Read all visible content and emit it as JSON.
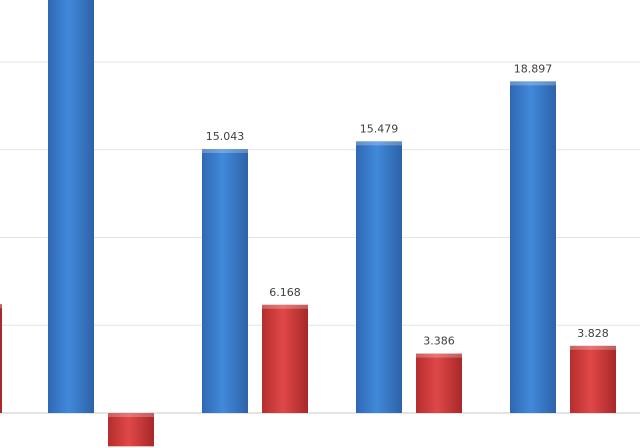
{
  "chart_data": {
    "type": "bar",
    "grid": true,
    "legend": "none",
    "ylim": [
      -2,
      23.6
    ],
    "series": [
      {
        "color": "#3c7fd0",
        "values": [
          {
            "y": 24.5,
            "label": ""
          },
          {
            "y": 15.043,
            "label": "15.043"
          },
          {
            "y": 15.479,
            "label": "15.479"
          },
          {
            "y": 18.897,
            "label": "18.897"
          }
        ]
      },
      {
        "color": "#d84040",
        "values": [
          {
            "y": -1.9,
            "label": ""
          },
          {
            "y": 6.168,
            "label": "6.168"
          },
          {
            "y": 3.386,
            "label": "3.386"
          },
          {
            "y": 3.828,
            "label": "3.828"
          }
        ]
      }
    ],
    "partial_bar": {
      "color": "#d84040",
      "y": 6.2
    }
  }
}
